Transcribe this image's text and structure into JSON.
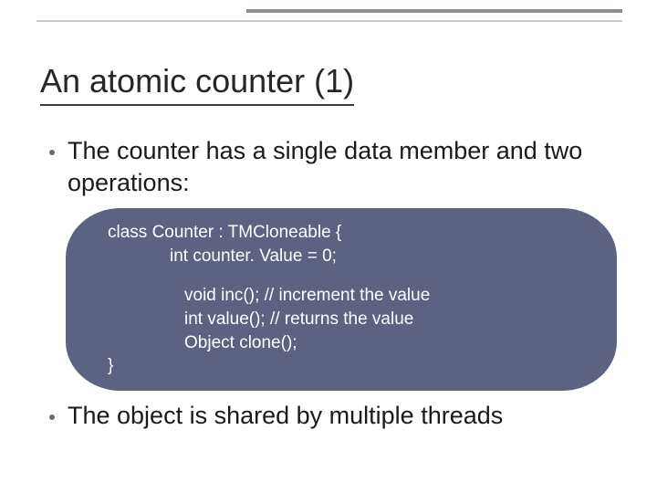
{
  "slide": {
    "title": "An atomic counter (1)",
    "bullets": [
      "The counter has a single data member and two operations:",
      "The object is shared by multiple threads"
    ],
    "code": {
      "line1": "class Counter : TMCloneable {",
      "line2": "int counter. Value = 0;",
      "line3": "void inc(); // increment the value",
      "line4": "int value(); // returns the value",
      "line5": "Object clone();",
      "line6": "}"
    },
    "colors": {
      "rule_thick": "#8d8d95",
      "rule_thin": "#c8c8ce",
      "code_bg": "#5d6182",
      "bullet_dot": "#6a6a78",
      "text": "#1a1a1a",
      "code_text": "#ffffff"
    }
  }
}
